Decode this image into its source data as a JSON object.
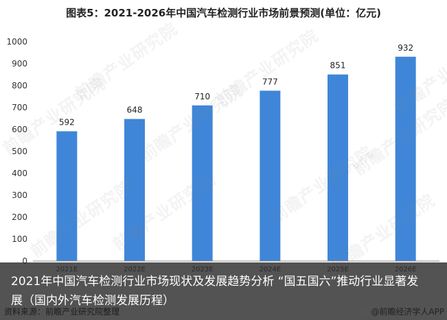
{
  "chart_data": {
    "type": "bar",
    "title": "图表5：2021-2026年中国汽车检测行业市场前景预测(单位：亿元)",
    "categories": [
      "2021E",
      "2022E",
      "2023E",
      "2024E",
      "2025E",
      "2026E"
    ],
    "values": [
      592,
      648,
      710,
      777,
      851,
      932
    ],
    "ylim": [
      0,
      1000
    ],
    "yticks": [
      0,
      100,
      200,
      300,
      400,
      500,
      600,
      700,
      800,
      900,
      1000
    ],
    "grid": false,
    "bar_color": "#3f86d8"
  },
  "watermark": "前瞻产业研究院",
  "caption": "2021年中国汽车检测行业市场现状及发展趋势分析 “国五国六”推动行业显著发展（国内外汽车检测发展历程）",
  "source": "资料来源：前瞻产业研究院整理",
  "app_credit": "@前瞻经济学人APP"
}
